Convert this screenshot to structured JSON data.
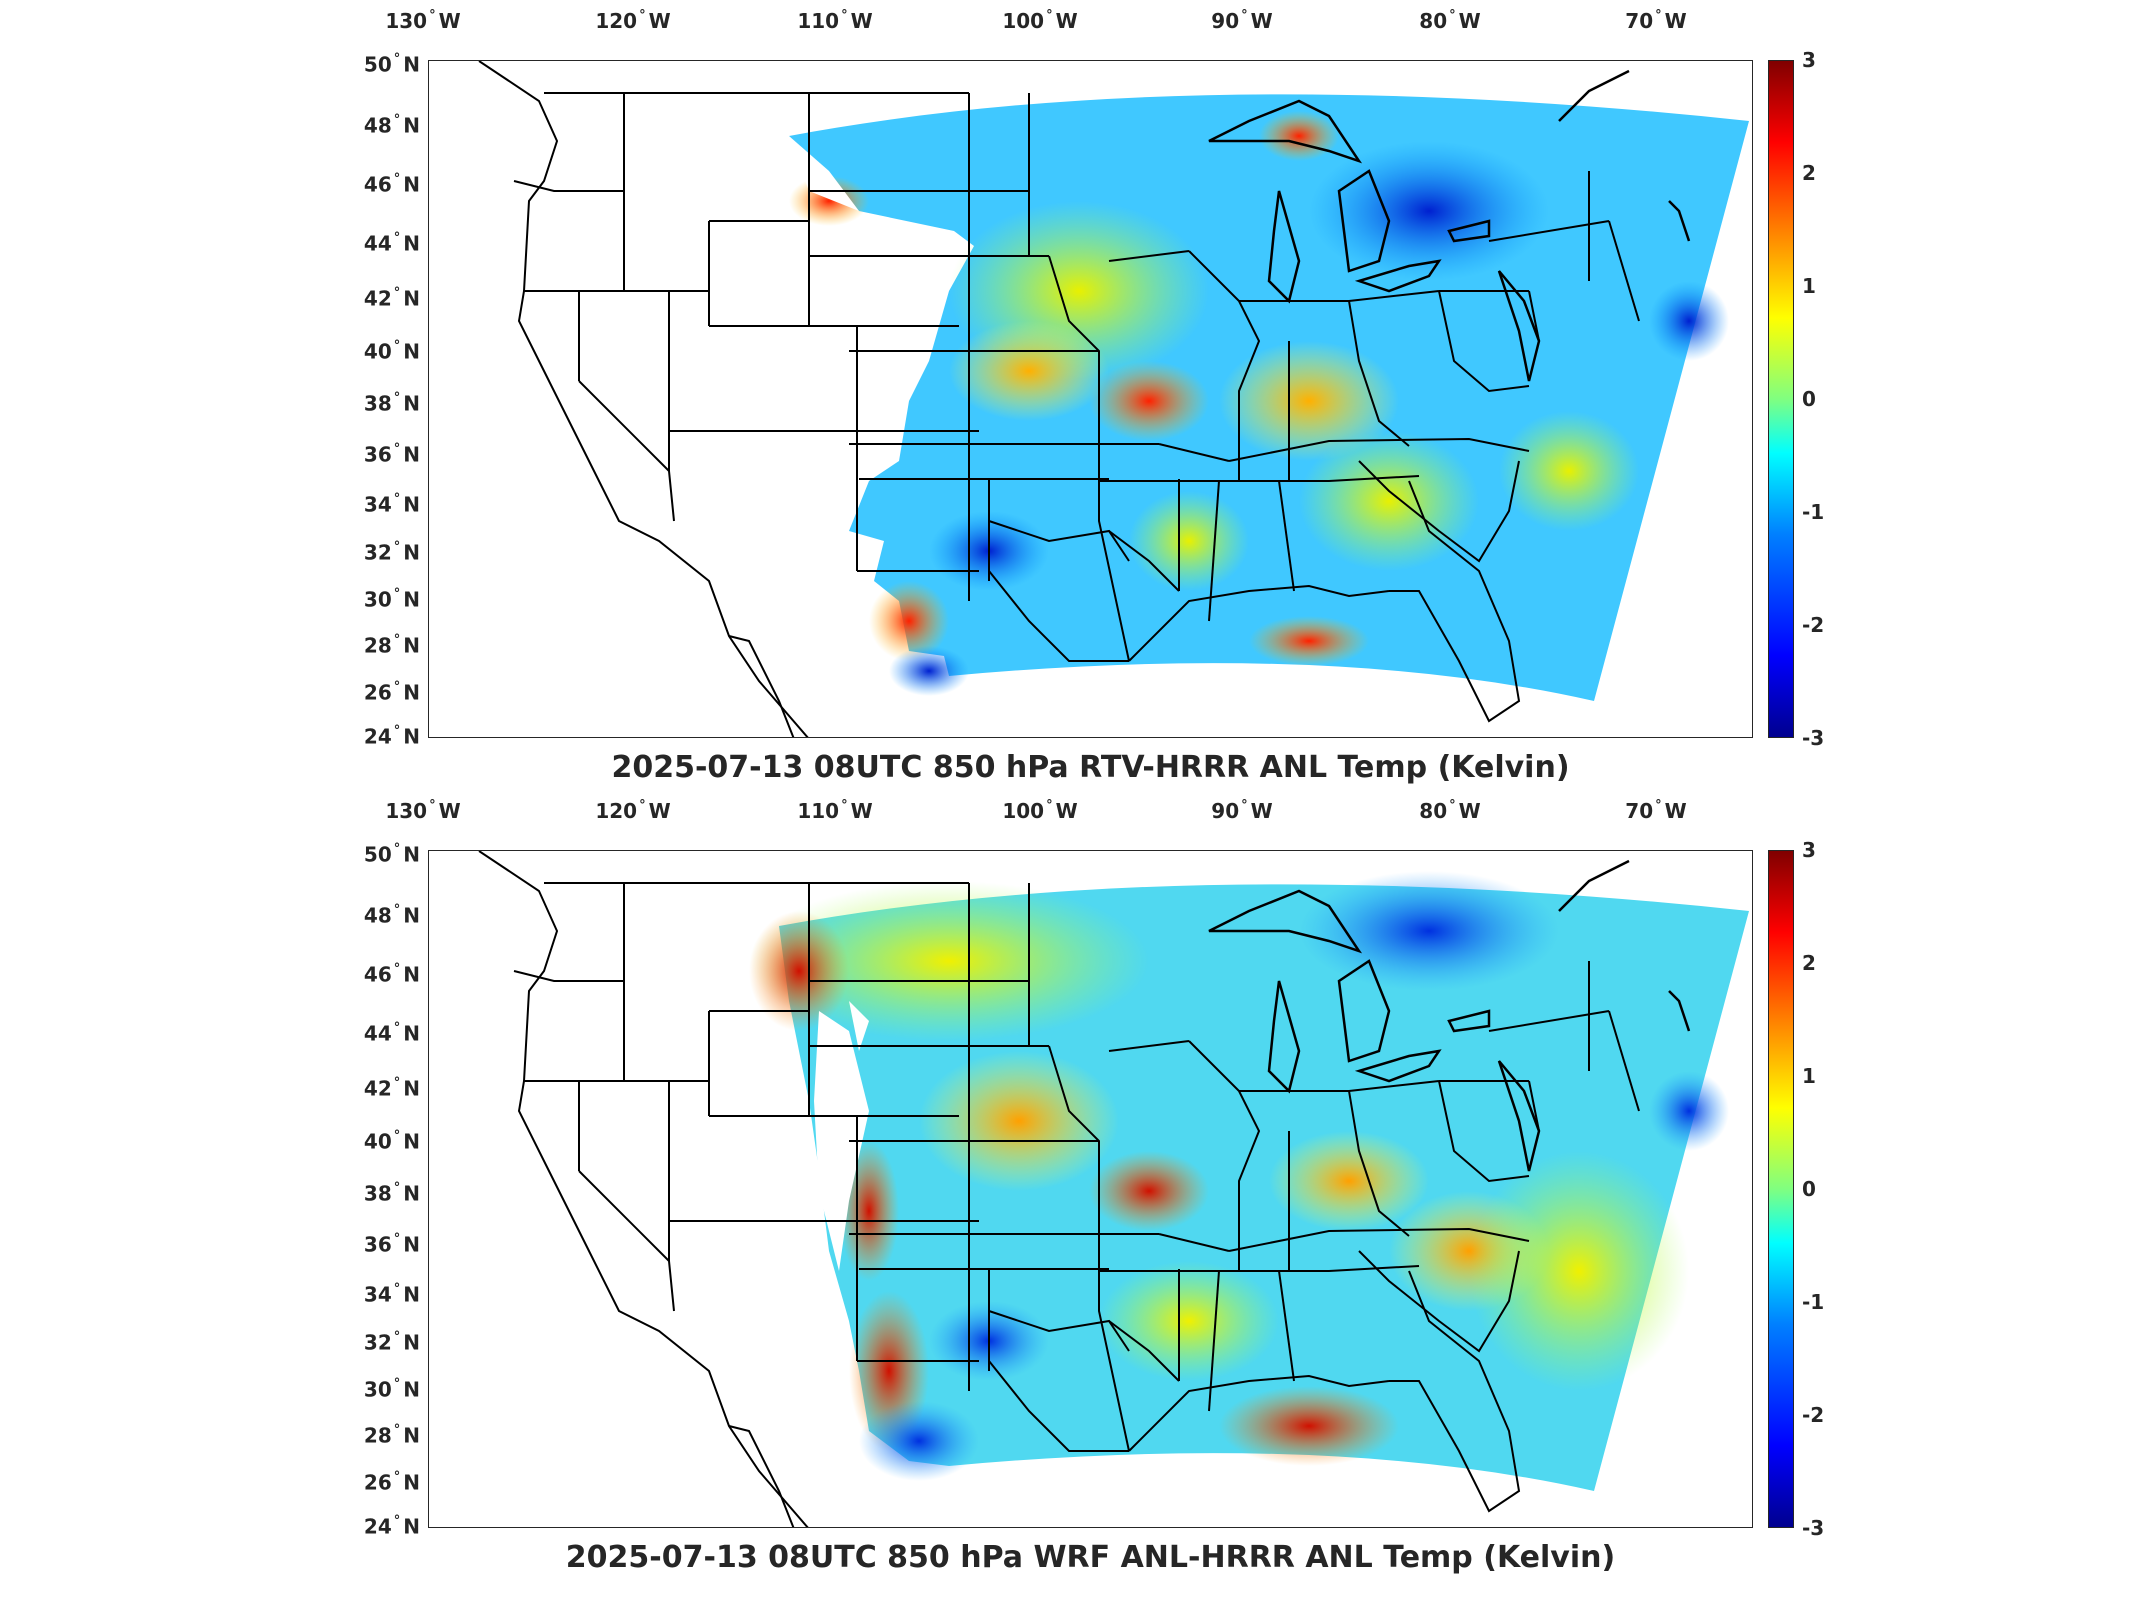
{
  "panels": [
    {
      "title": "2025-07-13 08UTC 850 hPa RTV-HRRR ANL Temp (Kelvin)",
      "lon_ticks": [
        "130",
        "120",
        "110",
        "100",
        "90",
        "80",
        "70"
      ],
      "lon_suffix": "W",
      "lat_ticks": [
        "50",
        "48",
        "46",
        "44",
        "42",
        "40",
        "38",
        "36",
        "34",
        "32",
        "30",
        "28",
        "26",
        "24"
      ],
      "lat_suffix": "N",
      "colorbar_ticks": [
        "3",
        "2",
        "1",
        "0",
        "-1",
        "-2",
        "-3"
      ],
      "colorbar_range": [
        -3,
        3
      ]
    },
    {
      "title": "2025-07-13 08UTC 850 hPa WRF ANL-HRRR ANL Temp (Kelvin)",
      "lon_ticks": [
        "130",
        "120",
        "110",
        "100",
        "90",
        "80",
        "70"
      ],
      "lon_suffix": "W",
      "lat_ticks": [
        "50",
        "48",
        "46",
        "44",
        "42",
        "40",
        "38",
        "36",
        "34",
        "32",
        "30",
        "28",
        "26",
        "24"
      ],
      "lat_suffix": "N",
      "colorbar_ticks": [
        "3",
        "2",
        "1",
        "0",
        "-1",
        "-2",
        "-3"
      ],
      "colorbar_range": [
        -3,
        3
      ]
    }
  ],
  "colormap": [
    "#00008f",
    "#0000ff",
    "#0080ff",
    "#00ffff",
    "#80ff80",
    "#ffff00",
    "#ff8000",
    "#ff0000",
    "#800000"
  ]
}
